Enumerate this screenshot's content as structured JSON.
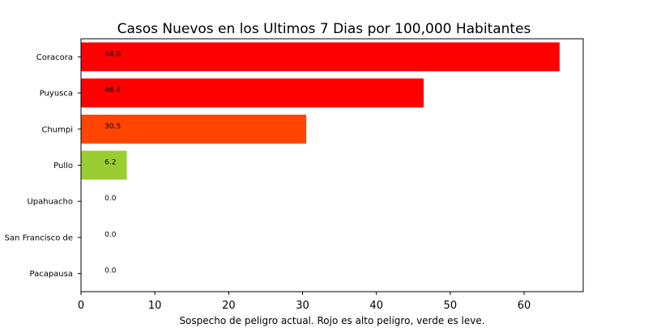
{
  "chart_data": {
    "type": "bar",
    "orientation": "horizontal",
    "title": "Casos Nuevos en los Ultimos 7 Dias por 100,000 Habitantes",
    "xlabel": "Sospecho de peligro actual. Rojo es alto peligro, verde es leve.",
    "ylabel": "",
    "xlim": [
      0,
      68
    ],
    "xticks": [
      0,
      10,
      20,
      30,
      40,
      50,
      60
    ],
    "grid": false,
    "categories": [
      "Coracora",
      "Puyusca",
      "Chumpi",
      "Pullo",
      "Upahuacho",
      "San Francisco de",
      "Pacapausa"
    ],
    "values": [
      64.8,
      46.4,
      30.5,
      6.2,
      0.0,
      0.0,
      0.0
    ],
    "value_labels": [
      "64.8",
      "46.4",
      "30.5",
      "6.2",
      "0.0",
      "0.0",
      "0.0"
    ],
    "colors": [
      "#ff0000",
      "#ff0000",
      "#ff4500",
      "#9acd32",
      "#9acd32",
      "#9acd32",
      "#9acd32"
    ]
  }
}
